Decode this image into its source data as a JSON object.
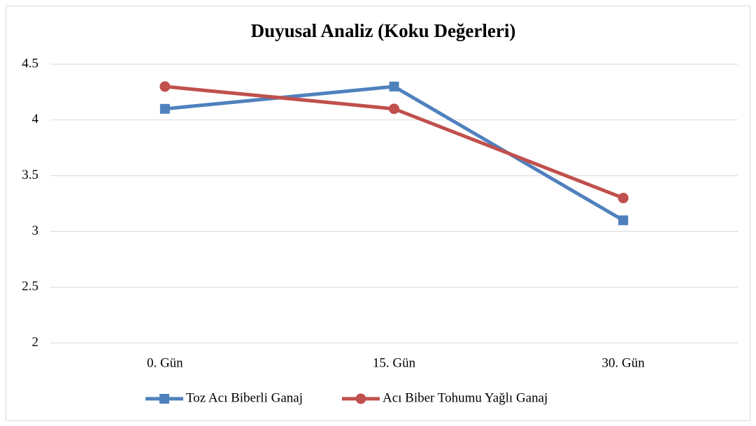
{
  "chart_data": {
    "type": "line",
    "title": "Duyusal Analiz (Koku Değerleri)",
    "categories": [
      "0. Gün",
      "15. Gün",
      "30. Gün"
    ],
    "series": [
      {
        "name": "Toz Acı Biberli Ganaj",
        "color": "#4f81bd",
        "marker": "square",
        "values": [
          4.1,
          4.3,
          3.1
        ]
      },
      {
        "name": "Acı Biber Tohumu Yağlı Ganaj",
        "color": "#c0504d",
        "marker": "circle",
        "values": [
          4.3,
          4.1,
          3.3
        ]
      }
    ],
    "ylim": [
      2,
      4.5
    ],
    "yticks": [
      2,
      2.5,
      3,
      3.5,
      4,
      4.5
    ],
    "grid": true,
    "legend": "bottom"
  }
}
